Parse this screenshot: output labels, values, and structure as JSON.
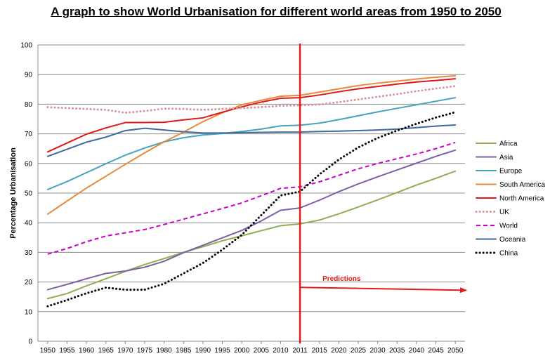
{
  "chart_data": {
    "type": "line",
    "title": "A graph to show World Urbanisation for different world areas from 1950 to 2050",
    "ylabel": "Percentage Urbanisation",
    "xlabel": "",
    "ylim": [
      0,
      100
    ],
    "yticks": [
      0,
      10,
      20,
      30,
      40,
      50,
      60,
      70,
      80,
      90,
      100
    ],
    "grid": true,
    "legend_position": "right",
    "x": [
      1950,
      1955,
      1960,
      1965,
      1970,
      1975,
      1980,
      1985,
      1990,
      1995,
      2000,
      2005,
      2010,
      2011,
      2015,
      2020,
      2025,
      2030,
      2035,
      2040,
      2045,
      2050
    ],
    "series": [
      {
        "name": "Africa",
        "color": "#8fae53",
        "style": "solid",
        "values": [
          14.4,
          16.1,
          18.7,
          21.1,
          23.6,
          25.9,
          27.9,
          30.0,
          31.9,
          33.9,
          35.6,
          37.3,
          39.0,
          39.6,
          40.9,
          43.0,
          45.3,
          47.7,
          50.2,
          52.7,
          55.0,
          57.4
        ]
      },
      {
        "name": "Asia",
        "color": "#7e5ea5",
        "style": "solid",
        "values": [
          17.4,
          19.2,
          21.1,
          22.9,
          23.7,
          25.0,
          27.0,
          29.9,
          32.4,
          34.9,
          37.4,
          40.6,
          44.2,
          45.0,
          47.6,
          50.5,
          53.1,
          55.5,
          57.8,
          60.1,
          62.4,
          64.5
        ]
      },
      {
        "name": "Europe",
        "color": "#4aa2bd",
        "style": "solid",
        "values": [
          51.2,
          53.9,
          56.9,
          59.9,
          62.8,
          65.2,
          67.3,
          68.7,
          69.6,
          70.1,
          70.8,
          71.6,
          72.7,
          72.9,
          73.6,
          74.8,
          76.1,
          77.4,
          78.6,
          79.8,
          81.0,
          82.2
        ]
      },
      {
        "name": "South America",
        "color": "#e68a3e",
        "style": "solid",
        "values": [
          42.9,
          47.3,
          51.7,
          55.7,
          59.7,
          63.6,
          67.3,
          70.6,
          74.1,
          77.1,
          79.8,
          81.3,
          82.7,
          83.0,
          84.1,
          85.2,
          86.3,
          87.1,
          87.8,
          88.5,
          89.1,
          89.6
        ]
      },
      {
        "name": "North America",
        "color": "#e0161a",
        "style": "solid",
        "values": [
          63.9,
          66.9,
          69.9,
          72.0,
          73.8,
          73.8,
          73.9,
          74.7,
          75.4,
          77.3,
          79.1,
          80.7,
          82.0,
          82.2,
          83.1,
          84.2,
          85.2,
          86.0,
          86.8,
          87.5,
          88.0,
          88.6
        ]
      },
      {
        "name": "UK",
        "color": "#d9979a",
        "style": "dotted",
        "values": [
          79.0,
          78.7,
          78.4,
          78.1,
          77.1,
          77.7,
          78.5,
          78.4,
          78.1,
          78.4,
          78.7,
          79.0,
          79.5,
          79.6,
          79.9,
          80.7,
          81.6,
          82.5,
          83.4,
          84.4,
          85.3,
          86.1
        ]
      },
      {
        "name": "World",
        "color": "#cc00cc",
        "style": "dashed",
        "values": [
          29.4,
          31.3,
          33.6,
          35.5,
          36.6,
          37.7,
          39.4,
          41.2,
          43.0,
          44.8,
          46.7,
          49.1,
          51.6,
          52.1,
          53.8,
          56.0,
          58.2,
          60.0,
          61.6,
          63.2,
          65.0,
          67.1
        ]
      },
      {
        "name": "Oceania",
        "color": "#3f6a9e",
        "style": "solid",
        "values": [
          62.4,
          64.8,
          67.2,
          68.9,
          71.1,
          71.9,
          71.3,
          70.7,
          70.3,
          70.3,
          70.4,
          70.5,
          70.6,
          70.6,
          70.8,
          70.9,
          71.1,
          71.3,
          71.6,
          72.1,
          72.6,
          73.0
        ]
      },
      {
        "name": "China",
        "color": "#000000",
        "style": "dotted-bold",
        "values": [
          11.8,
          13.9,
          16.2,
          18.1,
          17.4,
          17.4,
          19.4,
          22.9,
          26.4,
          30.9,
          35.9,
          42.5,
          49.2,
          50.5,
          56.3,
          61.3,
          65.4,
          68.6,
          71.1,
          73.4,
          75.5,
          77.3
        ]
      }
    ],
    "annotations": {
      "divider_year": 2011,
      "predictions_label": "Predictions",
      "predictions_arrow_y": [
        18.2,
        17.2
      ],
      "accent_color": "#e31a1c"
    }
  }
}
